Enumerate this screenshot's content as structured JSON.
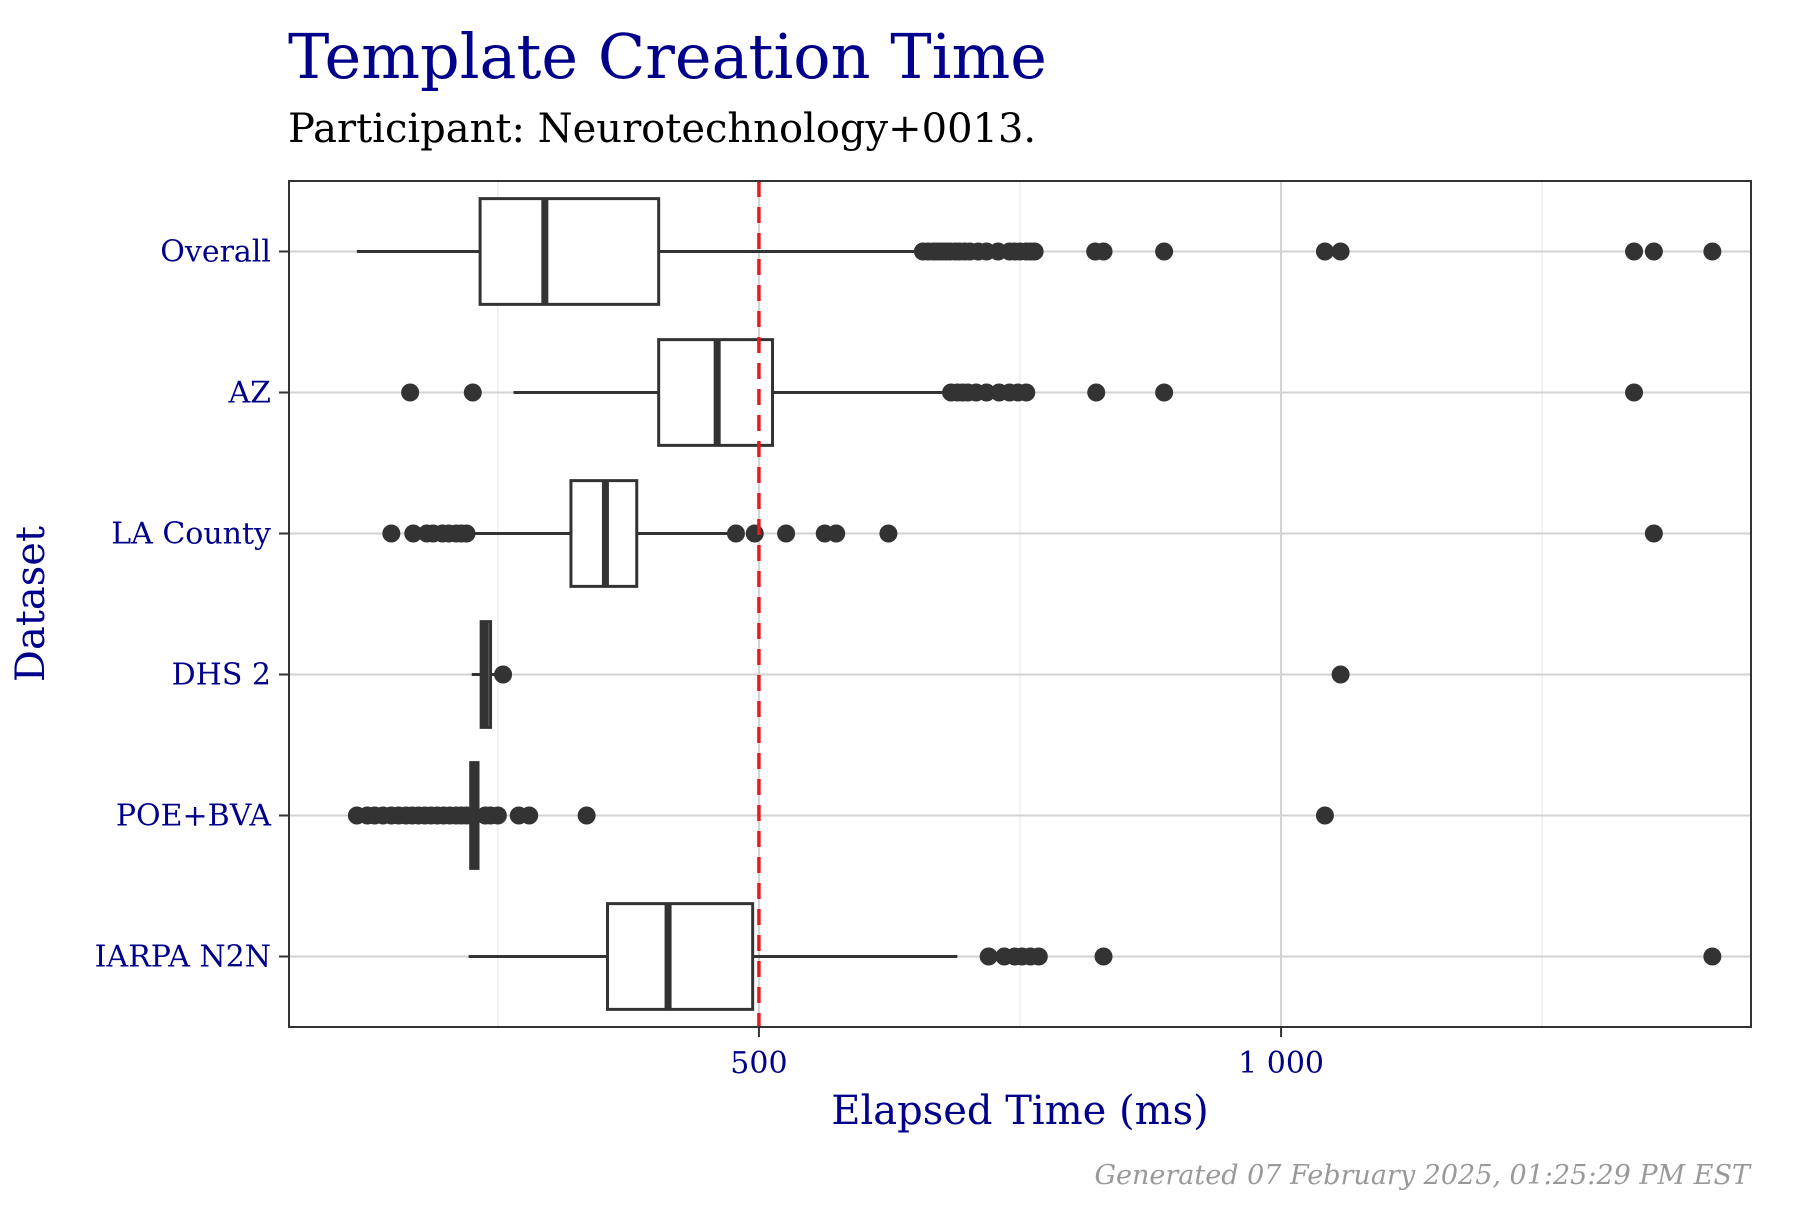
{
  "chart_data": {
    "type": "boxplot",
    "title": "Template Creation Time",
    "subtitle": "Participant: Neurotechnology+0013.",
    "xlabel": "Elapsed Time (ms)",
    "ylabel": "Dataset",
    "caption": "Generated 07 February 2025, 01:25:29 PM EST",
    "xlim": [
      50,
      1450
    ],
    "x_ticks": [
      {
        "value": 500,
        "label": "500"
      },
      {
        "value": 1000,
        "label": "1 000"
      }
    ],
    "x_minor_ticks": [
      250,
      750,
      1250
    ],
    "reference_line": {
      "x": 500,
      "color": "#e41a1c",
      "style": "dashed"
    },
    "grid": true,
    "colors": {
      "title": "#00008b",
      "axis_text": "#00008b",
      "caption": "#999999",
      "box": "#333333"
    },
    "categories": [
      "Overall",
      "AZ",
      "LA County",
      "DHS 2",
      "POE+BVA",
      "IARPA N2N"
    ],
    "boxes": [
      {
        "name": "Overall",
        "whisker_low": 115,
        "q1": 233,
        "median": 295,
        "q3": 404,
        "whisker_high": 653,
        "outliers": [
          657,
          662,
          667,
          671,
          675,
          679,
          683,
          688,
          692,
          697,
          702,
          710,
          718,
          729,
          740,
          745,
          750,
          756,
          760,
          764,
          822,
          830,
          888,
          1042,
          1057,
          1338,
          1357,
          1413
        ]
      },
      {
        "name": "AZ",
        "whisker_low": 265,
        "q1": 404,
        "median": 460,
        "q3": 513,
        "whisker_high": 680,
        "outliers": [
          166,
          226,
          684,
          690,
          695,
          700,
          708,
          718,
          730,
          740,
          748,
          756,
          823,
          888,
          1338
        ]
      },
      {
        "name": "LA County",
        "whisker_low": 228,
        "q1": 320,
        "median": 353,
        "q3": 383,
        "whisker_high": 470,
        "outliers": [
          148,
          169,
          182,
          188,
          197,
          203,
          210,
          215,
          220,
          478,
          496,
          526,
          563,
          574,
          624,
          1357
        ]
      },
      {
        "name": "DHS 2",
        "whisker_low": 225,
        "q1": 234,
        "median": 238,
        "q3": 243,
        "whisker_high": 250,
        "outliers": [
          255,
          1057
        ]
      },
      {
        "name": "POE+BVA",
        "whisker_low": 222,
        "q1": 224,
        "median": 228,
        "q3": 231,
        "whisker_high": 236,
        "outliers": [
          115,
          125,
          132,
          140,
          148,
          155,
          162,
          168,
          174,
          180,
          186,
          192,
          198,
          204,
          210,
          215,
          220,
          238,
          243,
          250,
          270,
          280,
          335,
          1042
        ]
      },
      {
        "name": "IARPA N2N",
        "whisker_low": 222,
        "q1": 355,
        "median": 413,
        "q3": 494,
        "whisker_high": 690,
        "outliers": [
          720,
          735,
          745,
          752,
          760,
          768,
          830,
          1413
        ]
      }
    ]
  }
}
